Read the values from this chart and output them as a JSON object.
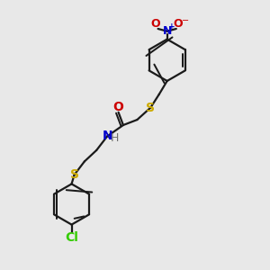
{
  "bg_color": "#e8e8e8",
  "bond_color": "#1a1a1a",
  "S_color": "#ccaa00",
  "N_color": "#0000cc",
  "O_color": "#cc0000",
  "Cl_color": "#33cc00",
  "H_color": "#707070",
  "figsize": [
    3.0,
    3.0
  ],
  "dpi": 100,
  "xlim": [
    0,
    10
  ],
  "ylim": [
    0,
    10
  ]
}
